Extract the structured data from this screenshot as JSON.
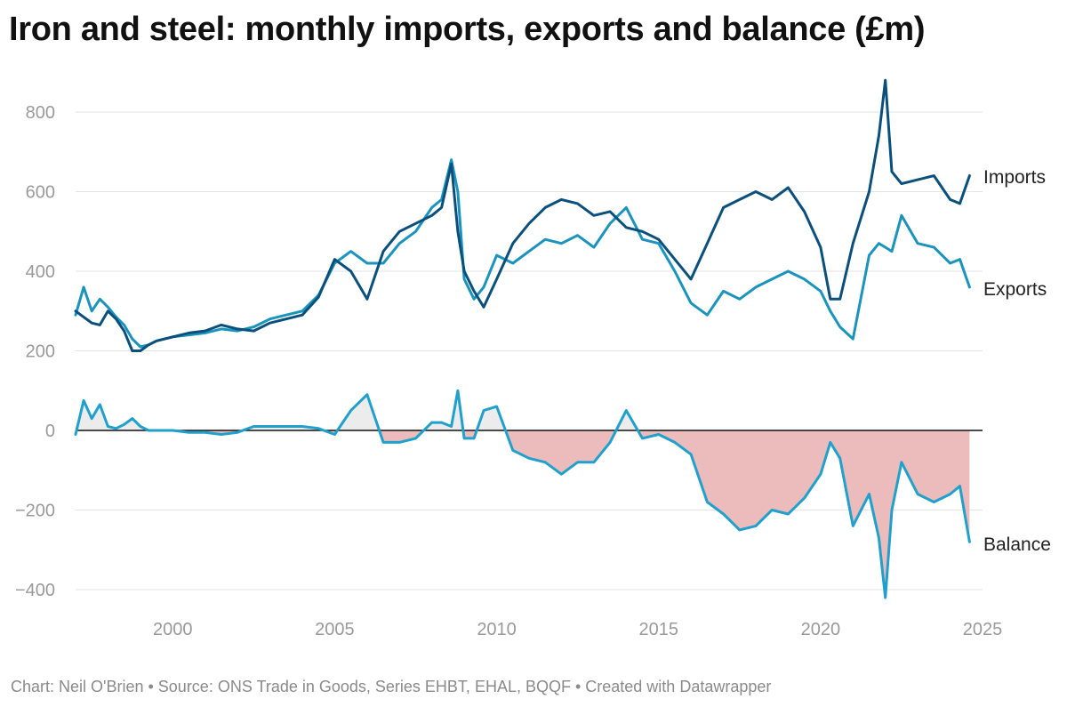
{
  "chart_data": {
    "type": "line",
    "title": "Iron and steel: monthly imports, exports and balance (£m)",
    "xlim": [
      1997,
      2025
    ],
    "ylim": [
      -450,
      900
    ],
    "grid": true,
    "y_ticks": [
      800,
      600,
      400,
      200,
      0,
      -200,
      -400
    ],
    "y_tick_labels": [
      "800",
      "600",
      "400",
      "200",
      "0",
      "−200",
      "−400"
    ],
    "x_ticks": [
      2000,
      2005,
      2010,
      2015,
      2020,
      2025
    ],
    "x_tick_labels": [
      "2000",
      "2005",
      "2010",
      "2015",
      "2020",
      "2025"
    ],
    "colors": {
      "imports": "#0b4f7c",
      "exports": "#1a93bd",
      "balance": "#20a0cc",
      "deficit_fill": "#ecbcbc",
      "surplus_fill": "#ececec"
    },
    "series": [
      {
        "name": "Imports",
        "x": [
          1997.0,
          1997.25,
          1997.5,
          1997.75,
          1998.0,
          1998.25,
          1998.5,
          1998.75,
          1999.0,
          1999.25,
          1999.5,
          1999.75,
          2000.0,
          2000.5,
          2001.0,
          2001.5,
          2002.0,
          2002.5,
          2003.0,
          2003.5,
          2004.0,
          2004.5,
          2005.0,
          2005.5,
          2006.0,
          2006.5,
          2007.0,
          2007.5,
          2008.0,
          2008.3,
          2008.6,
          2008.8,
          2009.0,
          2009.3,
          2009.6,
          2010.0,
          2010.5,
          2011.0,
          2011.5,
          2012.0,
          2012.5,
          2013.0,
          2013.5,
          2014.0,
          2014.5,
          2015.0,
          2015.5,
          2016.0,
          2016.5,
          2017.0,
          2017.5,
          2018.0,
          2018.5,
          2019.0,
          2019.5,
          2020.0,
          2020.3,
          2020.6,
          2021.0,
          2021.5,
          2021.8,
          2022.0,
          2022.2,
          2022.5,
          2023.0,
          2023.5,
          2024.0,
          2024.3,
          2024.6
        ],
        "values": [
          300,
          285,
          270,
          265,
          300,
          280,
          250,
          200,
          200,
          215,
          225,
          230,
          235,
          245,
          250,
          265,
          255,
          250,
          270,
          280,
          290,
          335,
          430,
          400,
          330,
          450,
          500,
          520,
          540,
          560,
          670,
          500,
          400,
          350,
          310,
          380,
          470,
          520,
          560,
          580,
          570,
          540,
          550,
          510,
          500,
          480,
          430,
          380,
          470,
          560,
          580,
          600,
          580,
          610,
          550,
          460,
          330,
          330,
          470,
          600,
          740,
          880,
          650,
          620,
          630,
          640,
          580,
          570,
          640
        ]
      },
      {
        "name": "Exports",
        "x": [
          1997.0,
          1997.25,
          1997.5,
          1997.75,
          1998.0,
          1998.25,
          1998.5,
          1998.75,
          1999.0,
          1999.25,
          1999.5,
          1999.75,
          2000.0,
          2000.5,
          2001.0,
          2001.5,
          2002.0,
          2002.5,
          2003.0,
          2003.5,
          2004.0,
          2004.5,
          2005.0,
          2005.5,
          2006.0,
          2006.5,
          2007.0,
          2007.5,
          2008.0,
          2008.3,
          2008.6,
          2008.8,
          2009.0,
          2009.3,
          2009.6,
          2010.0,
          2010.5,
          2011.0,
          2011.5,
          2012.0,
          2012.5,
          2013.0,
          2013.5,
          2014.0,
          2014.5,
          2015.0,
          2015.5,
          2016.0,
          2016.5,
          2017.0,
          2017.5,
          2018.0,
          2018.5,
          2019.0,
          2019.5,
          2020.0,
          2020.3,
          2020.6,
          2021.0,
          2021.5,
          2021.8,
          2022.0,
          2022.2,
          2022.5,
          2023.0,
          2023.5,
          2024.0,
          2024.3,
          2024.6
        ],
        "values": [
          290,
          360,
          300,
          330,
          310,
          285,
          265,
          230,
          210,
          215,
          225,
          230,
          235,
          240,
          245,
          255,
          250,
          260,
          280,
          290,
          300,
          340,
          420,
          450,
          420,
          420,
          470,
          500,
          560,
          580,
          680,
          600,
          380,
          330,
          360,
          440,
          420,
          450,
          480,
          470,
          490,
          460,
          520,
          560,
          480,
          470,
          400,
          320,
          290,
          350,
          330,
          360,
          380,
          400,
          380,
          350,
          300,
          260,
          230,
          440,
          470,
          460,
          450,
          540,
          470,
          460,
          420,
          430,
          360
        ]
      },
      {
        "name": "Balance",
        "x": [
          1997.0,
          1997.25,
          1997.5,
          1997.75,
          1998.0,
          1998.25,
          1998.5,
          1998.75,
          1999.0,
          1999.25,
          1999.5,
          1999.75,
          2000.0,
          2000.5,
          2001.0,
          2001.5,
          2002.0,
          2002.5,
          2003.0,
          2003.5,
          2004.0,
          2004.5,
          2005.0,
          2005.5,
          2006.0,
          2006.5,
          2007.0,
          2007.5,
          2008.0,
          2008.3,
          2008.6,
          2008.8,
          2009.0,
          2009.3,
          2009.6,
          2010.0,
          2010.5,
          2011.0,
          2011.5,
          2012.0,
          2012.5,
          2013.0,
          2013.5,
          2014.0,
          2014.5,
          2015.0,
          2015.5,
          2016.0,
          2016.5,
          2017.0,
          2017.5,
          2018.0,
          2018.5,
          2019.0,
          2019.5,
          2020.0,
          2020.3,
          2020.6,
          2021.0,
          2021.5,
          2021.8,
          2022.0,
          2022.2,
          2022.5,
          2023.0,
          2023.5,
          2024.0,
          2024.3,
          2024.6
        ],
        "values": [
          -10,
          75,
          30,
          65,
          10,
          5,
          15,
          30,
          10,
          0,
          0,
          0,
          0,
          -5,
          -5,
          -10,
          -5,
          10,
          10,
          10,
          10,
          5,
          -10,
          50,
          90,
          -30,
          -30,
          -20,
          20,
          20,
          10,
          100,
          -20,
          -20,
          50,
          60,
          -50,
          -70,
          -80,
          -110,
          -80,
          -80,
          -30,
          50,
          -20,
          -10,
          -30,
          -60,
          -180,
          -210,
          -250,
          -240,
          -200,
          -210,
          -170,
          -110,
          -30,
          -70,
          -240,
          -160,
          -270,
          -420,
          -200,
          -80,
          -160,
          -180,
          -160,
          -140,
          -280
        ]
      }
    ]
  }
}
